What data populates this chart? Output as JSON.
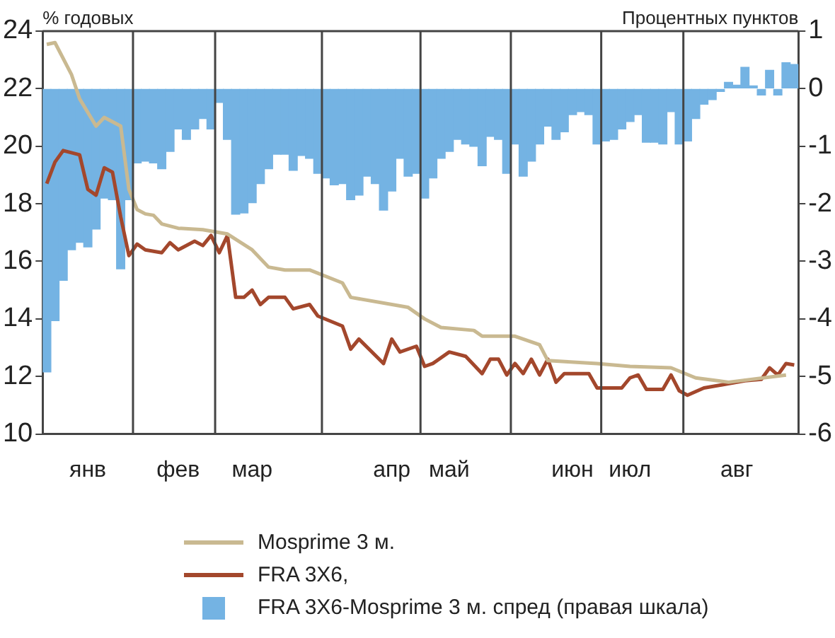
{
  "chart_data": {
    "type": "line",
    "ylabel": "% годовых",
    "y2label": "Процентных пунктов",
    "categories": [
      null,
      null,
      null,
      null,
      null,
      "янв",
      null,
      null,
      null,
      null,
      null,
      null,
      null,
      null,
      null,
      null,
      "фев",
      null,
      null,
      null,
      null,
      null,
      null,
      null,
      null,
      "мар",
      null,
      null,
      null,
      null,
      null,
      null,
      null,
      null,
      null,
      null,
      null,
      null,
      null,
      null,
      null,
      null,
      "апр",
      null,
      null,
      null,
      null,
      null,
      null,
      "май",
      null,
      null,
      null,
      null,
      null,
      null,
      null,
      null,
      null,
      null,
      null,
      null,
      null,
      null,
      "июн",
      null,
      null,
      null,
      null,
      null,
      null,
      "июл",
      null,
      null,
      null,
      null,
      null,
      null,
      null,
      null,
      null,
      null,
      null,
      null,
      "авг",
      null,
      null,
      null,
      null,
      null,
      null,
      null
    ],
    "ylim": [
      10,
      24
    ],
    "yticks": [
      10,
      12,
      14,
      16,
      18,
      20,
      22,
      24
    ],
    "y2lim": [
      -6,
      1
    ],
    "y2ticks": [
      -6,
      -5,
      -4,
      -3,
      -2,
      -1,
      0,
      1
    ],
    "grid": "x",
    "legend": "bottom",
    "marker": "none",
    "line_style": "solid",
    "series": [
      {
        "name": "FRA 3X6-Mosprime 3 м. спред (правая шкала)",
        "type": "bar",
        "axis": "y2",
        "color": "#74b3e3",
        "values": [
          -4.92,
          -4.03,
          -3.33,
          -2.8,
          -2.67,
          -2.75,
          -2.44,
          -1.9,
          -1.93,
          -3.13,
          -1.93,
          -1.29,
          -1.26,
          -1.29,
          -1.39,
          -1.09,
          -0.7,
          -0.88,
          -0.7,
          -0.52,
          -0.7,
          -0.24,
          -0.88,
          -2.18,
          -2.16,
          -1.98,
          -1.65,
          -1.39,
          -1.14,
          -1.14,
          -1.42,
          -1.16,
          -1.21,
          -1.47,
          -1.55,
          -1.67,
          -1.65,
          -1.93,
          -1.85,
          -1.52,
          -1.65,
          -2.11,
          -1.78,
          -1.21,
          -1.52,
          -1.47,
          -1.9,
          -1.55,
          -1.21,
          -1.09,
          -0.88,
          -0.96,
          -1.0,
          -1.34,
          -0.83,
          -0.88,
          -1.47,
          -0.96,
          -1.52,
          -1.26,
          -0.96,
          -0.65,
          -0.88,
          -0.75,
          -0.45,
          -0.4,
          -0.45,
          -0.96,
          -0.91,
          -0.88,
          -0.7,
          -0.57,
          -0.45,
          -0.93,
          -0.93,
          -0.96,
          -0.4,
          -0.96,
          -0.91,
          -0.52,
          -0.27,
          -0.19,
          -0.05,
          0.11,
          0.06,
          0.37,
          0.05,
          -0.11,
          0.32,
          -0.11,
          0.45,
          0.42
        ]
      },
      {
        "name": "Mosprime 3 м.",
        "color": "#c9b991",
        "values": [
          23.54,
          23.6,
          null,
          22.5,
          21.65,
          null,
          20.7,
          21.0,
          null,
          20.7,
          18.5,
          17.8,
          17.65,
          17.6,
          17.3,
          null,
          17.15,
          null,
          null,
          17.1,
          null,
          null,
          16.95,
          null,
          null,
          16.4,
          null,
          15.8,
          null,
          15.7,
          null,
          null,
          15.7,
          null,
          null,
          null,
          15.25,
          14.75,
          null,
          null,
          null,
          null,
          null,
          null,
          14.4,
          null,
          14.0,
          null,
          13.7,
          null,
          null,
          null,
          13.6,
          13.4,
          null,
          null,
          null,
          13.4,
          null,
          null,
          13.1,
          12.55,
          null,
          null,
          null,
          null,
          null,
          12.45,
          null,
          null,
          null,
          12.35,
          null,
          null,
          null,
          null,
          12.3,
          null,
          null,
          11.95,
          null,
          null,
          null,
          11.8,
          null,
          null,
          null,
          null,
          null,
          null,
          12.05,
          null
        ]
      },
      {
        "name": "FRA 3X6,",
        "color": "#a3472c",
        "values": [
          18.7,
          19.45,
          19.85,
          null,
          19.7,
          18.5,
          18.3,
          19.25,
          19.1,
          17.55,
          16.2,
          16.6,
          16.4,
          null,
          16.3,
          16.65,
          16.4,
          null,
          16.7,
          16.55,
          16.9,
          16.3,
          16.9,
          14.75,
          14.75,
          15.0,
          14.5,
          14.75,
          null,
          14.75,
          14.35,
          null,
          14.5,
          14.1,
          null,
          null,
          13.75,
          12.95,
          13.3,
          null,
          null,
          12.45,
          13.3,
          12.85,
          null,
          13.05,
          12.35,
          12.45,
          null,
          12.85,
          null,
          12.7,
          null,
          12.1,
          12.6,
          12.6,
          12.05,
          12.45,
          12.1,
          12.6,
          12.05,
          12.6,
          11.8,
          12.1,
          null,
          null,
          12.1,
          11.6,
          null,
          null,
          11.6,
          11.95,
          12.05,
          11.55,
          null,
          11.55,
          12.05,
          11.5,
          11.35,
          null,
          11.6,
          null,
          11.7,
          null,
          null,
          11.85,
          null,
          11.9,
          12.3,
          12.05,
          12.45,
          12.4
        ]
      }
    ]
  }
}
